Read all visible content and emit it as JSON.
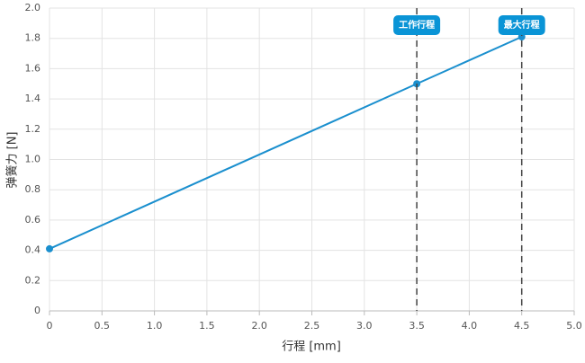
{
  "chart_data": {
    "type": "line",
    "x_label": "行程 [mm]",
    "y_label": "弹簧力 [N]",
    "x": [
      0,
      3.5,
      4.5
    ],
    "series": [
      {
        "color": "#1a8fce",
        "values": [
          0.41,
          1.5,
          1.81
        ]
      }
    ],
    "xlim": [
      0,
      5
    ],
    "ylim": [
      0,
      2
    ],
    "xticks": [
      0,
      0.5,
      {
        "value": 1,
        "label": "1.0"
      },
      1.5,
      {
        "value": 2,
        "label": "2.0"
      },
      2.5,
      {
        "value": 3,
        "label": "3.0"
      },
      3.5,
      {
        "value": 4,
        "label": "4.0"
      },
      4.5,
      {
        "value": 5,
        "label": "5.0"
      }
    ],
    "yticks": [
      0,
      0.2,
      0.4,
      0.6,
      0.8,
      {
        "value": 1,
        "label": "1.0"
      },
      1.2,
      1.4,
      1.6,
      1.8,
      {
        "value": 2,
        "label": "2.0"
      }
    ],
    "grid": true,
    "annotations": [
      {
        "x": 3.5,
        "label": "工作行程",
        "color": "#0a94d6"
      },
      {
        "x": 4.5,
        "label": "最大行程",
        "color": "#0a94d6"
      }
    ]
  }
}
